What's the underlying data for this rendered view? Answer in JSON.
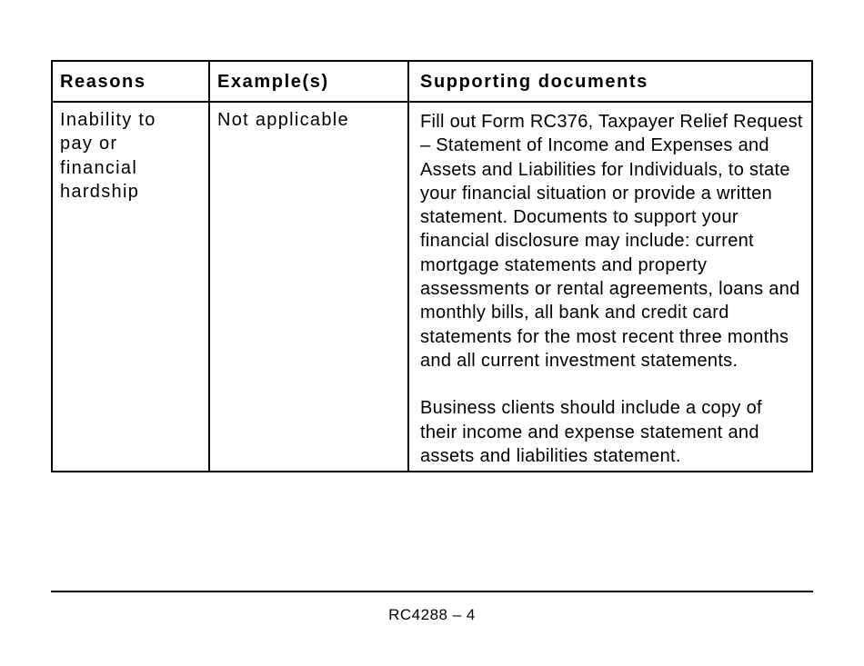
{
  "table": {
    "headers": [
      "Reasons",
      "Example(s)",
      "Supporting documents"
    ],
    "rows": [
      {
        "reason_lines": [
          "Inability to",
          "pay or",
          "financial",
          "hardship"
        ],
        "example": "Not applicable",
        "supporting_paragraphs": [
          "Fill out Form RC376, Taxpayer Relief Request – Statement of Income and Expenses and Assets and Liabilities for Individuals, to state your financial situation or provide a written statement. Documents to support your financial disclosure may include: current mortgage statements and property assessments or rental agreements, loans and monthly bills, all bank and credit card statements for the most recent three months and all current investment statements.",
          "Business clients should include a copy of their income and expense statement and assets and liabilities statement."
        ]
      }
    ]
  },
  "footer": {
    "page_label": "RC4288 – 4"
  }
}
